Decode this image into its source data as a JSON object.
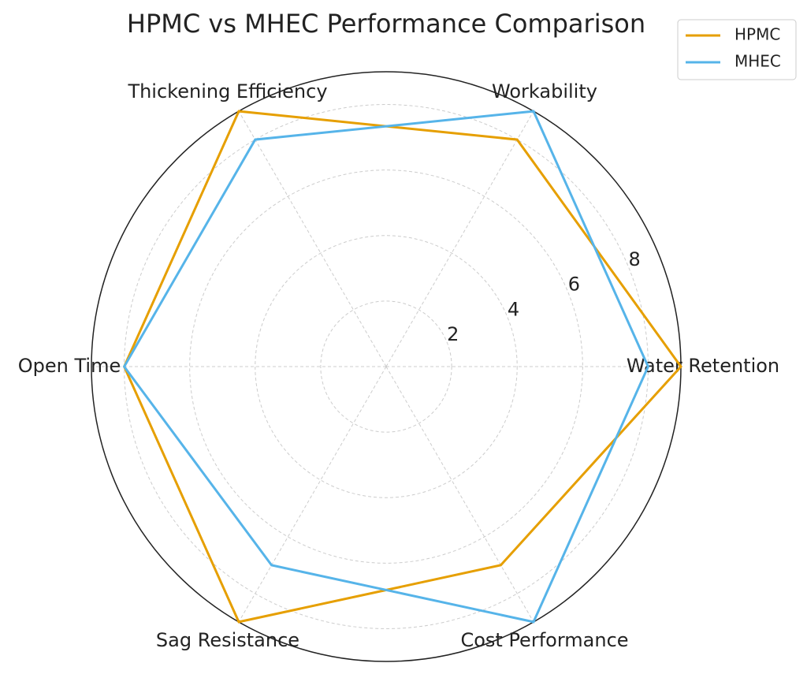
{
  "chart_data": {
    "type": "radar",
    "title": "HPMC vs MHEC Performance Comparison",
    "categories": [
      "Water Retention",
      "Workability",
      "Thickening Efficiency",
      "Open Time",
      "Sag Resistance",
      "Cost Performance"
    ],
    "series": [
      {
        "name": "HPMC",
        "color": "#e69f00",
        "values": [
          9,
          8,
          9,
          8,
          9,
          7
        ]
      },
      {
        "name": "MHEC",
        "color": "#56b4e9",
        "values": [
          8,
          9,
          8,
          8,
          7,
          9
        ]
      }
    ],
    "ylim": [
      0,
      9
    ],
    "yticks": [
      2,
      4,
      6,
      8
    ],
    "grid": true,
    "legend": "upper right"
  }
}
